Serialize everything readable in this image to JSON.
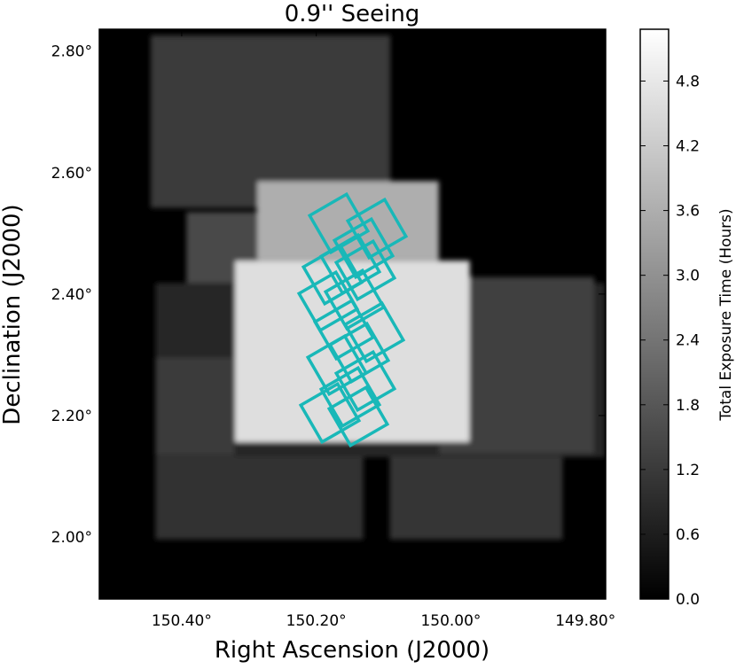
{
  "chart_data": {
    "type": "heatmap",
    "title": "0.9'' Seeing",
    "x_label": "Right Ascension (J2000)",
    "y_label": "Declination (J2000)",
    "colorbar_label": "Total Exposure Time (Hours)",
    "xlim": [
      150.5224,
      149.77
    ],
    "ylim": [
      1.898,
      2.836
    ],
    "clim": [
      0,
      5.28
    ],
    "xticks": [
      {
        "value": 150.4,
        "label": "150.40°"
      },
      {
        "value": 150.2,
        "label": "150.20°"
      },
      {
        "value": 150.0,
        "label": "150.00°"
      },
      {
        "value": 149.8,
        "label": "149.80°"
      }
    ],
    "yticks": [
      {
        "value": 2.0,
        "label": "2.00°"
      },
      {
        "value": 2.2,
        "label": "2.20°"
      },
      {
        "value": 2.4,
        "label": "2.40°"
      },
      {
        "value": 2.6,
        "label": "2.60°"
      },
      {
        "value": 2.8,
        "label": "2.80°"
      }
    ],
    "cticks": [
      {
        "value": 0,
        "label": "0.0"
      },
      0.6,
      1.2,
      1.8,
      2.4,
      {
        "value": 3,
        "label": "3.0"
      },
      3.6,
      4.2,
      4.8
    ],
    "tiles": [
      {
        "ra": [
          150.446,
          150.09
        ],
        "dec": [
          2.826,
          2.542
        ],
        "value": 1.2
      },
      {
        "ra": [
          150.439,
          149.771
        ],
        "dec": [
          2.418,
          2.131
        ],
        "value": 0.8
      },
      {
        "ra": [
          150.439,
          150.321
        ],
        "dec": [
          2.296,
          2.134
        ],
        "value": 1.2
      },
      {
        "ra": [
          150.018,
          149.787
        ],
        "dec": [
          2.428,
          2.137
        ],
        "value": 1.3
      },
      {
        "ra": [
          150.393,
          150.275
        ],
        "dec": [
          2.535,
          2.418
        ],
        "value": 1.5
      },
      {
        "ra": [
          150.439,
          150.13
        ],
        "dec": [
          2.134,
          1.996
        ],
        "value": 1.0
      },
      {
        "ra": [
          150.091,
          149.834
        ],
        "dec": [
          2.134,
          1.996
        ],
        "value": 1.1
      },
      {
        "ra": [
          150.288,
          150.018
        ],
        "dec": [
          2.586,
          2.447
        ],
        "value": 3.6
      },
      {
        "ra": [
          150.321,
          149.972
        ],
        "dec": [
          2.455,
          2.156
        ],
        "value": 4.6
      }
    ]
  }
}
